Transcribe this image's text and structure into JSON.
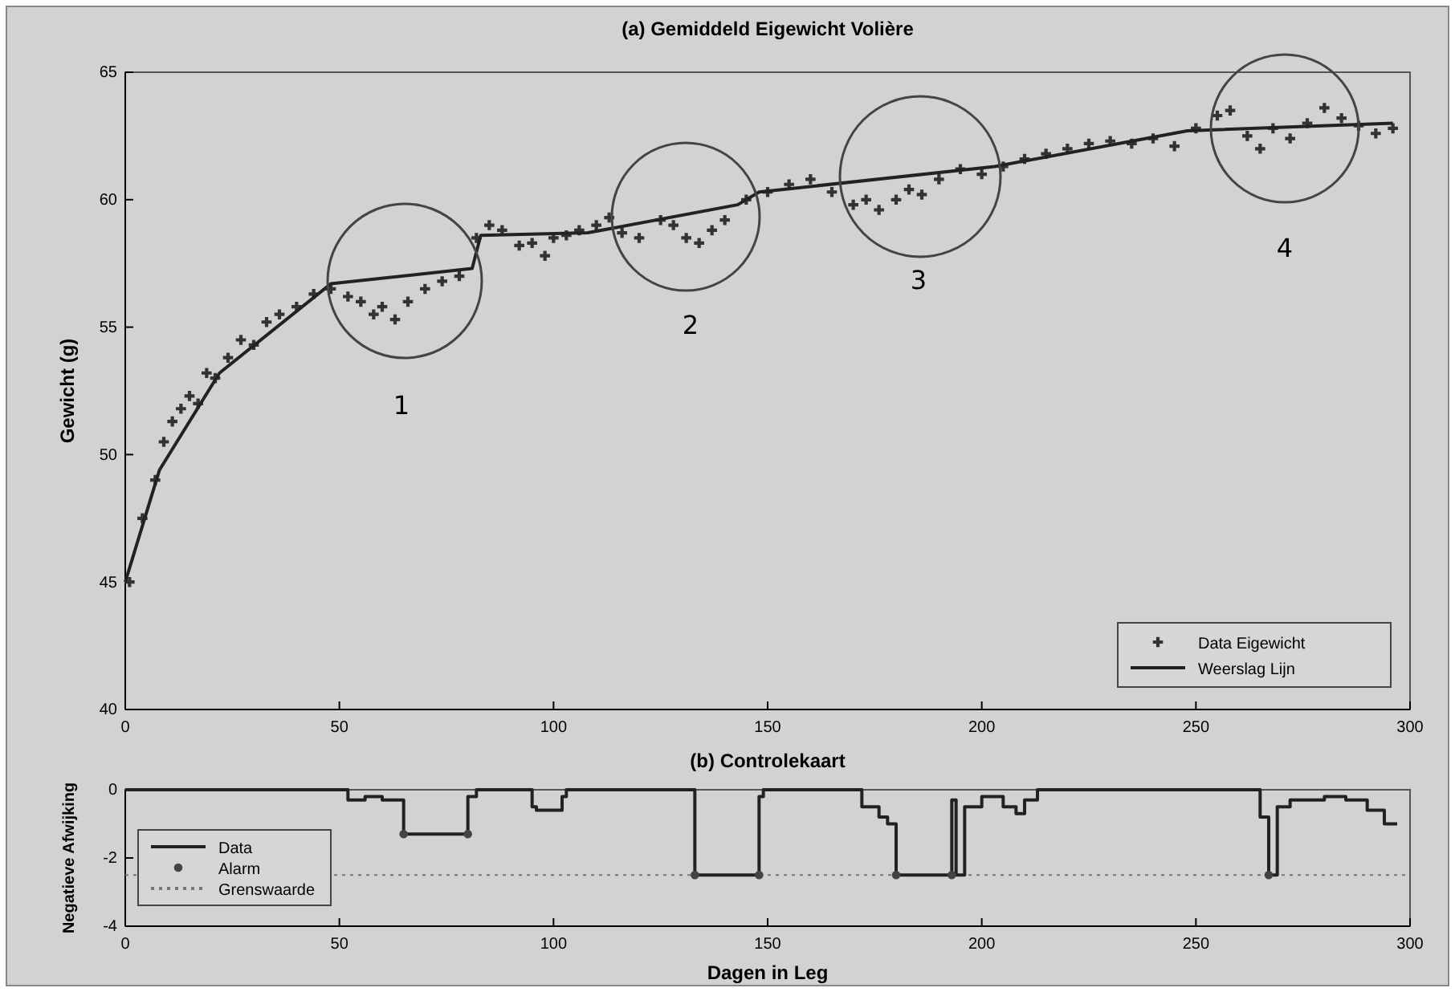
{
  "chart_data": [
    {
      "type": "scatter",
      "title": "(a) Gemiddeld Eigewicht Volière",
      "ylabel": "Gewicht (g)",
      "xlim": [
        0,
        300
      ],
      "xticks": [
        0,
        50,
        100,
        150,
        200,
        250,
        300
      ],
      "ylim": [
        40,
        65
      ],
      "yticks": [
        40,
        45,
        50,
        55,
        60,
        65
      ],
      "legend": "bottom right",
      "series": [
        {
          "name": "Data Eigewicht",
          "marker": "cross",
          "color": "#333333",
          "x": [
            1,
            4,
            7,
            9,
            11,
            13,
            15,
            17,
            19,
            21,
            24,
            27,
            30,
            33,
            36,
            40,
            44,
            48,
            52,
            55,
            58,
            60,
            63,
            66,
            70,
            74,
            78,
            82,
            85,
            88,
            92,
            95,
            98,
            100,
            103,
            106,
            110,
            113,
            116,
            120,
            125,
            128,
            131,
            134,
            137,
            140,
            145,
            150,
            155,
            160,
            165,
            170,
            173,
            176,
            180,
            183,
            186,
            190,
            195,
            200,
            205,
            210,
            215,
            220,
            225,
            230,
            235,
            240,
            245,
            250,
            255,
            258,
            262,
            265,
            268,
            272,
            276,
            280,
            284,
            288,
            292,
            296
          ],
          "values": [
            45.0,
            47.5,
            49.0,
            50.5,
            51.3,
            51.8,
            52.3,
            52.0,
            53.2,
            53.0,
            53.8,
            54.5,
            54.3,
            55.2,
            55.5,
            55.8,
            56.3,
            56.5,
            56.2,
            56.0,
            55.5,
            55.8,
            55.3,
            56.0,
            56.5,
            56.8,
            57.0,
            58.5,
            59.0,
            58.8,
            58.2,
            58.3,
            57.8,
            58.5,
            58.6,
            58.8,
            59.0,
            59.3,
            58.7,
            58.5,
            59.2,
            59.0,
            58.5,
            58.3,
            58.8,
            59.2,
            60.0,
            60.3,
            60.6,
            60.8,
            60.3,
            59.8,
            60.0,
            59.6,
            60.0,
            60.4,
            60.2,
            60.8,
            61.2,
            61.0,
            61.3,
            61.6,
            61.8,
            62.0,
            62.2,
            62.3,
            62.2,
            62.4,
            62.1,
            62.8,
            63.3,
            63.5,
            62.5,
            62.0,
            62.8,
            62.4,
            63.0,
            63.6,
            63.2,
            62.9,
            62.6,
            62.8
          ]
        },
        {
          "name": "Weerslag Lijn",
          "type": "line",
          "color": "#222222",
          "x": [
            0,
            8,
            22,
            48,
            81,
            83,
            108,
            143,
            148,
            203,
            248,
            296
          ],
          "values": [
            45.0,
            49.4,
            53.2,
            56.7,
            57.3,
            58.6,
            58.7,
            59.8,
            60.3,
            61.3,
            62.7,
            63.0
          ]
        }
      ],
      "annotations": [
        "1",
        "2",
        "3",
        "4"
      ]
    },
    {
      "type": "step",
      "title": "(b) Controlekaart",
      "xlabel": "Dagen in Leg",
      "ylabel": "Negatieve Afwijking",
      "xlim": [
        0,
        300
      ],
      "xticks": [
        0,
        50,
        100,
        150,
        200,
        250,
        300
      ],
      "ylim": [
        -4,
        0
      ],
      "yticks": [
        -4,
        -2,
        0
      ],
      "legend": "left",
      "series": [
        {
          "name": "Data",
          "color": "#222222",
          "x": [
            0,
            50,
            52,
            56,
            60,
            65,
            80,
            82,
            95,
            96,
            102,
            103,
            133,
            148,
            149,
            170,
            172,
            176,
            178,
            180,
            193,
            194,
            195,
            196,
            197,
            200,
            205,
            208,
            210,
            213,
            265,
            267,
            269,
            272,
            280,
            285,
            290,
            294,
            297
          ],
          "values": [
            0,
            0,
            -0.3,
            -0.2,
            -0.3,
            -1.3,
            -0.2,
            0,
            -0.5,
            -0.6,
            -0.2,
            0,
            -2.5,
            -0.2,
            0,
            0,
            -0.5,
            -0.8,
            -1.0,
            -2.5,
            -0.3,
            -2.5,
            -2.5,
            -0.5,
            -0.5,
            -0.2,
            -0.5,
            -0.7,
            -0.3,
            0,
            -0.8,
            -2.5,
            -0.5,
            -0.3,
            -0.2,
            -0.3,
            -0.6,
            -1.0,
            -1.0
          ]
        },
        {
          "name": "Alarm",
          "type": "scatter",
          "marker": "circle",
          "color": "#444444",
          "x": [
            65,
            80,
            133,
            148,
            180,
            193,
            267
          ],
          "values": [
            -1.3,
            -1.3,
            -2.5,
            -2.5,
            -2.5,
            -2.5,
            -2.5
          ]
        }
      ],
      "ref_lines": [
        {
          "axis": "y",
          "value": -2.5,
          "label": "Grenswaarde",
          "color": "#777777",
          "line_style": "dotted"
        }
      ]
    }
  ]
}
